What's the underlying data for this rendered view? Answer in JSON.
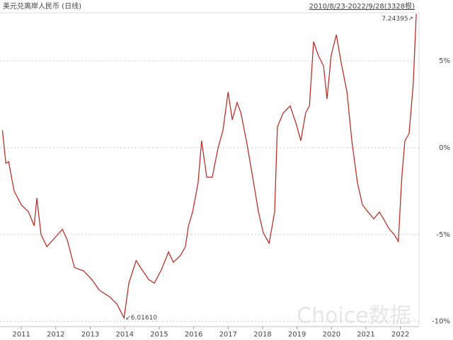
{
  "chart_data": {
    "type": "line",
    "title": "美元兑离岸人民币 (日线)",
    "subtitle": "2010/8/23-2022/9/28(3328根)",
    "annotations": [
      "7.24395↗",
      "↙6.01610"
    ],
    "watermark": "Choice数据",
    "x": [
      2010.45,
      2010.55,
      2010.63,
      2010.79,
      2011.0,
      2011.21,
      2011.37,
      2011.45,
      2011.57,
      2011.74,
      2011.92,
      2012.19,
      2012.33,
      2012.54,
      2012.81,
      2013.05,
      2013.26,
      2013.57,
      2013.77,
      2013.98,
      2014.12,
      2014.33,
      2014.49,
      2014.7,
      2014.86,
      2015.07,
      2015.27,
      2015.41,
      2015.62,
      2015.76,
      2015.85,
      2015.97,
      2016.13,
      2016.23,
      2016.38,
      2016.54,
      2016.71,
      2016.85,
      2017.0,
      2017.12,
      2017.26,
      2017.37,
      2017.53,
      2017.67,
      2017.78,
      2017.88,
      2018.02,
      2018.19,
      2018.35,
      2018.43,
      2018.6,
      2018.8,
      2018.97,
      2019.11,
      2019.25,
      2019.36,
      2019.48,
      2019.62,
      2019.77,
      2019.87,
      2019.99,
      2020.14,
      2020.28,
      2020.45,
      2020.59,
      2020.75,
      2020.9,
      2021.06,
      2021.23,
      2021.39,
      2021.51,
      2021.68,
      2021.82,
      2021.94,
      2022.04,
      2022.13,
      2022.25,
      2022.37,
      2022.46
    ],
    "series": [
      {
        "color": "#b8322a",
        "values": [
          1.0,
          -0.9,
          -0.8,
          -2.5,
          -3.3,
          -3.7,
          -4.5,
          -2.9,
          -5.0,
          -5.7,
          -5.3,
          -4.7,
          -5.3,
          -6.9,
          -7.1,
          -7.6,
          -8.2,
          -8.6,
          -9.0,
          -9.8,
          -7.8,
          -6.5,
          -7.0,
          -7.6,
          -7.8,
          -7.0,
          -6.0,
          -6.6,
          -6.2,
          -5.7,
          -4.5,
          -3.7,
          -2.0,
          0.4,
          -1.7,
          -1.7,
          0.0,
          1.0,
          3.2,
          1.6,
          2.6,
          2.0,
          0.4,
          -1.2,
          -2.5,
          -3.7,
          -4.9,
          -5.5,
          -3.7,
          1.2,
          2.0,
          2.4,
          1.4,
          0.4,
          2.0,
          2.4,
          6.1,
          5.3,
          4.7,
          2.8,
          5.3,
          6.5,
          4.9,
          3.2,
          0.4,
          -2.0,
          -3.3,
          -3.7,
          -4.1,
          -3.7,
          -4.1,
          -4.7,
          -5.0,
          -5.4,
          -1.7,
          0.4,
          0.8,
          3.6,
          7.7
        ]
      }
    ],
    "xlim": [
      2010.38,
      2022.54
    ],
    "xticks": [
      2011,
      2012,
      2013,
      2014,
      2015,
      2016,
      2017,
      2018,
      2019,
      2020,
      2021,
      2022
    ],
    "ylim": [
      -10.3,
      8.5
    ],
    "yticks": [
      {
        "value": 5,
        "label": "5%"
      },
      {
        "value": 0,
        "label": "0%"
      },
      {
        "value": -5,
        "label": "-5%"
      },
      {
        "value": -10,
        "label": "-10%"
      }
    ],
    "grid": true
  }
}
